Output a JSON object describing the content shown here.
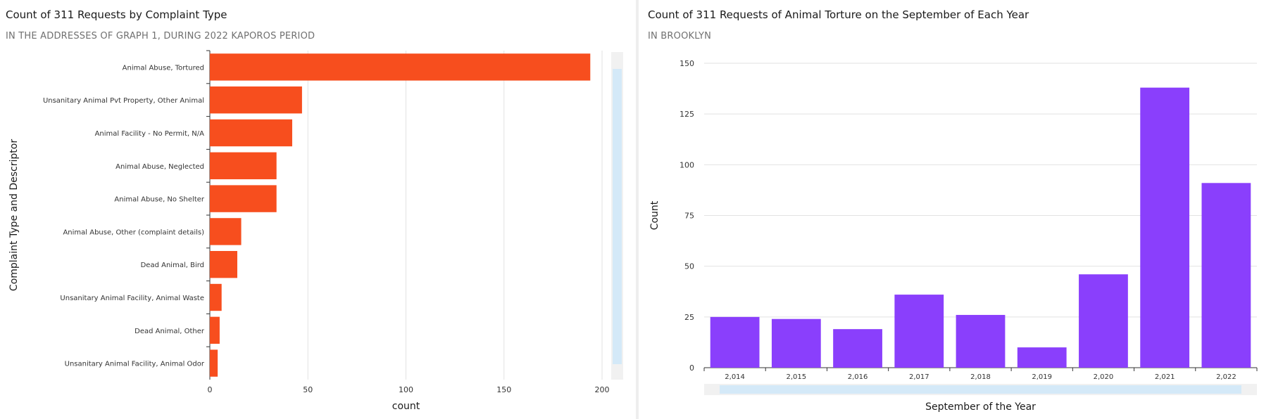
{
  "chart_data": [
    {
      "type": "bar",
      "orientation": "horizontal",
      "title": "Count of 311 Requests by Complaint Type",
      "subtitle": "IN THE ADDRESSES OF GRAPH 1, DURING 2022 KAPOROS PERIOD",
      "xlabel": "count",
      "ylabel": "Complaint Type and Descriptor",
      "xlim": [
        0,
        200
      ],
      "xticks": [
        0,
        50,
        100,
        150,
        200
      ],
      "grid": true,
      "categories": [
        "Animal Abuse, Tortured",
        "Unsanitary Animal Pvt Property, Other Animal",
        "Animal Facility - No Permit, N/A",
        "Animal Abuse, Neglected",
        "Animal Abuse, No Shelter",
        "Animal Abuse, Other (complaint details)",
        "Dead Animal, Bird",
        "Unsanitary Animal Facility, Animal Waste",
        "Dead Animal, Other",
        "Unsanitary Animal Facility, Animal Odor"
      ],
      "values": [
        194,
        47,
        42,
        34,
        34,
        16,
        14,
        6,
        5,
        4
      ],
      "color": "#f74e1e"
    },
    {
      "type": "bar",
      "orientation": "vertical",
      "title": "Count of 311 Requests of Animal Torture on the September of Each Year",
      "subtitle": "IN BROOKLYN",
      "xlabel": "September of the Year",
      "ylabel": "Count",
      "ylim": [
        0,
        150
      ],
      "yticks": [
        0,
        25,
        50,
        75,
        100,
        125,
        150
      ],
      "grid": true,
      "categories": [
        "2,014",
        "2,015",
        "2,016",
        "2,017",
        "2,018",
        "2,019",
        "2,020",
        "2,021",
        "2,022"
      ],
      "values": [
        25,
        24,
        19,
        36,
        26,
        10,
        46,
        138,
        91
      ],
      "color": "#8a3ffc"
    }
  ]
}
